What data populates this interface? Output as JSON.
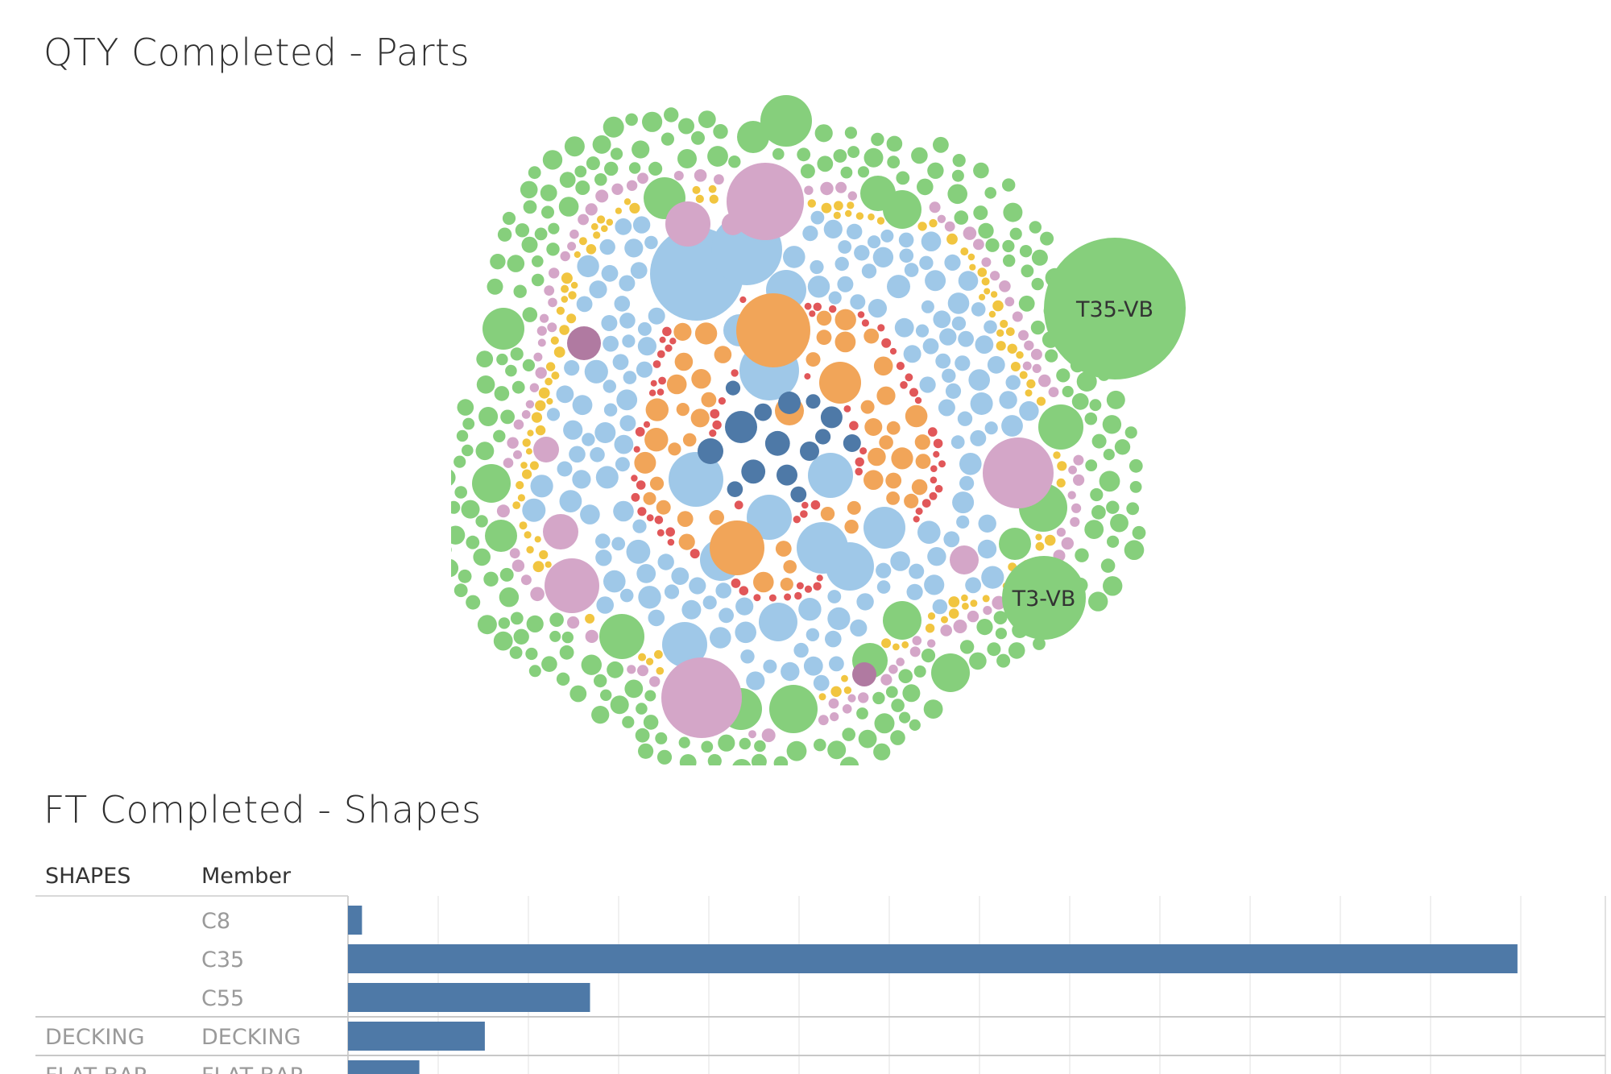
{
  "chart_data": [
    {
      "type": "packed-bubble",
      "title": "QTY Completed - Parts",
      "labeled_bubbles": [
        {
          "label": "T35-VB",
          "color": "#86cf7c"
        },
        {
          "label": "T3-VB",
          "color": "#86cf7c"
        }
      ],
      "color_groups": [
        {
          "color": "#4e79a7"
        },
        {
          "color": "#f1a559"
        },
        {
          "color": "#e15759"
        },
        {
          "color": "#9fc8e8"
        },
        {
          "color": "#f1c540"
        },
        {
          "color": "#d4a6c8"
        },
        {
          "color": "#b07aa1"
        },
        {
          "color": "#86cf7c"
        }
      ]
    },
    {
      "type": "bar",
      "orientation": "horizontal",
      "title": "FT Completed - Shapes",
      "column_headers": [
        "SHAPES",
        "Member"
      ],
      "bar_color": "#4e79a7",
      "rows": [
        {
          "shape": "",
          "member": "C8",
          "value": 1.2
        },
        {
          "shape": "",
          "member": "C35",
          "value": 100
        },
        {
          "shape": "",
          "member": "C55",
          "value": 20.7
        },
        {
          "shape": "DECKING",
          "member": "DECKING",
          "value": 11.7
        },
        {
          "shape": "FLAT BAR",
          "member": "FLAT BAR",
          "value": 6.1
        }
      ],
      "xlim": [
        0,
        108
      ],
      "gridlines": 13
    }
  ]
}
